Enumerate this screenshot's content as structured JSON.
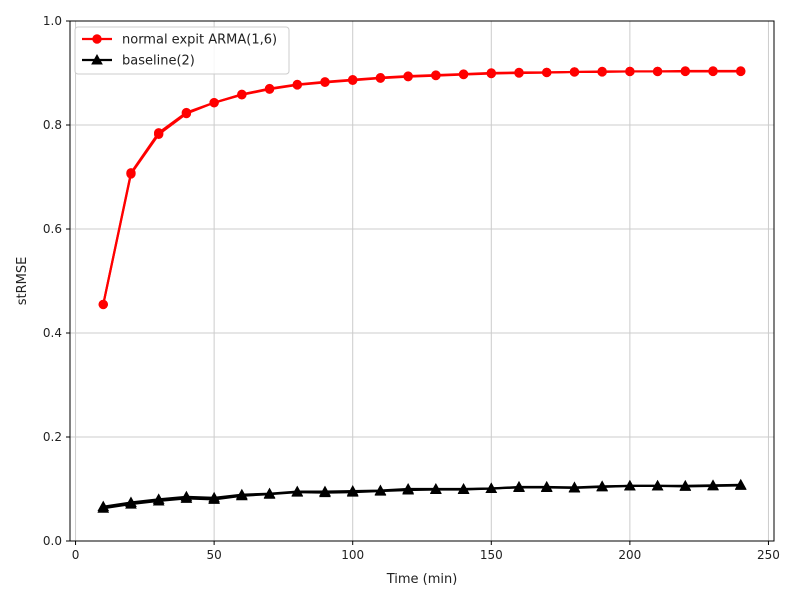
{
  "chart_data": {
    "type": "line",
    "title": "",
    "xlabel": "Time (min)",
    "ylabel": "stRMSE",
    "xlim": [
      -2,
      252
    ],
    "ylim": [
      0.0,
      1.0
    ],
    "xticks": [
      0,
      50,
      100,
      150,
      200,
      250
    ],
    "yticks": [
      0.0,
      0.2,
      0.4,
      0.6,
      0.8,
      1.0
    ],
    "grid": true,
    "legend_position": "top-left",
    "series": [
      {
        "name": "normal expit ARMA(1,6)",
        "color": "#ff0000",
        "marker": "circle",
        "lines": [
          {
            "x": [
              10,
              20,
              30,
              40,
              50,
              60,
              70,
              80,
              90,
              100,
              110,
              120,
              130,
              140,
              150,
              160,
              170,
              180,
              190,
              200,
              210,
              220,
              230,
              240
            ],
            "y": [
              0.455,
              0.708,
              0.785,
              0.824,
              0.843,
              0.858,
              0.869,
              0.877,
              0.882,
              0.886,
              0.89,
              0.893,
              0.895,
              0.897,
              0.899,
              0.9,
              0.901,
              0.902,
              0.902,
              0.903,
              0.903,
              0.903,
              0.903,
              0.903
            ]
          },
          {
            "x": [
              10,
              20,
              30,
              40,
              50,
              60,
              70,
              80,
              90,
              100,
              110,
              120,
              130,
              140,
              150,
              160,
              170,
              180,
              190,
              200,
              210,
              220,
              230,
              240
            ],
            "y": [
              0.455,
              0.706,
              0.782,
              0.822,
              0.843,
              0.859,
              0.87,
              0.878,
              0.883,
              0.887,
              0.891,
              0.894,
              0.896,
              0.898,
              0.9,
              0.901,
              0.901,
              0.902,
              0.903,
              0.903,
              0.903,
              0.904,
              0.904,
              0.904
            ]
          }
        ]
      },
      {
        "name": "baseline(2)",
        "color": "#000000",
        "marker": "triangle",
        "lines": [
          {
            "x": [
              10,
              20,
              30,
              40,
              50,
              60,
              70,
              80,
              90,
              100,
              110,
              120,
              130,
              140,
              150,
              160,
              170,
              180,
              190,
              200,
              210,
              220,
              230,
              240
            ],
            "y": [
              0.063,
              0.071,
              0.077,
              0.082,
              0.08,
              0.087,
              0.09,
              0.094,
              0.093,
              0.094,
              0.096,
              0.098,
              0.099,
              0.099,
              0.101,
              0.103,
              0.103,
              0.102,
              0.104,
              0.106,
              0.106,
              0.105,
              0.106,
              0.107
            ]
          },
          {
            "x": [
              10,
              20,
              30,
              40,
              50,
              60,
              70,
              80,
              90,
              100,
              110,
              120,
              130,
              140,
              150,
              160,
              170,
              180,
              190,
              200,
              210,
              220,
              230,
              240
            ],
            "y": [
              0.066,
              0.074,
              0.08,
              0.085,
              0.083,
              0.089,
              0.091,
              0.095,
              0.095,
              0.096,
              0.097,
              0.1,
              0.1,
              0.1,
              0.101,
              0.104,
              0.104,
              0.103,
              0.105,
              0.106,
              0.106,
              0.106,
              0.107,
              0.108
            ]
          }
        ]
      }
    ]
  }
}
